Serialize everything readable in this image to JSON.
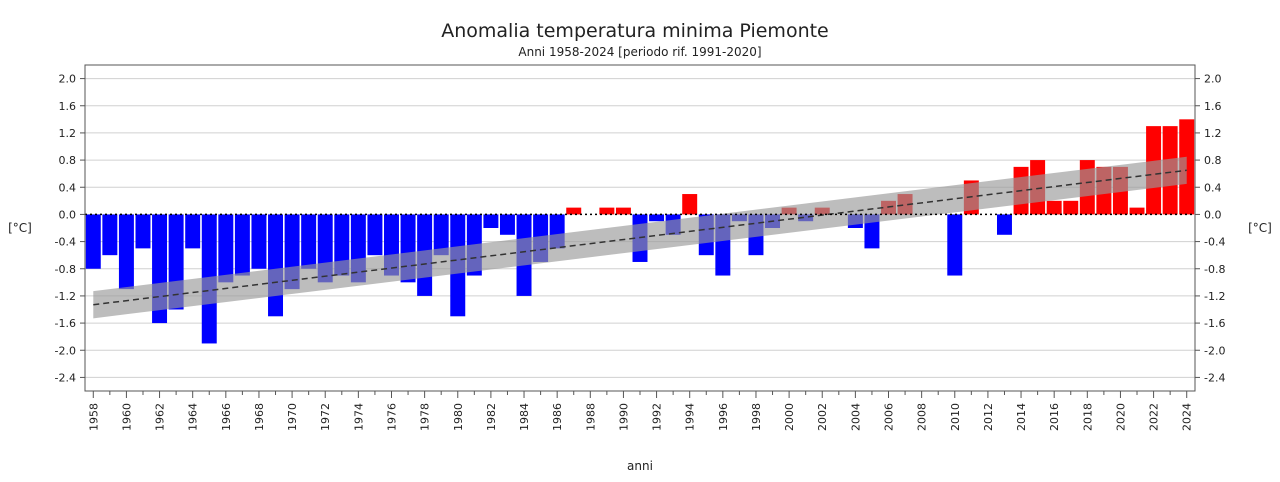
{
  "chart_data": {
    "type": "bar",
    "title": "Anomalia temperatura minima Piemonte",
    "subtitle": "Anni 1958-2024  [periodo rif. 1991-2020]",
    "xlabel": "anni",
    "ylabel_left": "[°C]",
    "ylabel_right": "[°C]",
    "ylim": [
      -2.6,
      2.2
    ],
    "yticks": [
      2.0,
      1.6,
      1.2,
      0.8,
      0.4,
      0.0,
      -0.4,
      -0.8,
      -1.2,
      -1.6,
      -2.0,
      -2.4
    ],
    "ytick_labels": [
      "2.0",
      "1.6",
      "1.2",
      "0.8",
      "0.4",
      "0.0",
      "-0.4",
      "-0.8",
      "-1.2",
      "-1.6",
      "-2.0",
      "-2.4"
    ],
    "xtick_labels": [
      "1958",
      "1960",
      "1962",
      "1964",
      "1966",
      "1968",
      "1970",
      "1972",
      "1974",
      "1976",
      "1978",
      "1980",
      "1982",
      "1984",
      "1986",
      "1988",
      "1990",
      "1992",
      "1994",
      "1996",
      "1998",
      "2000",
      "2002",
      "2004",
      "2006",
      "2008",
      "2010",
      "2012",
      "2014",
      "2016",
      "2018",
      "2020",
      "2022",
      "2024"
    ],
    "grid": true,
    "positive_color": "#ff0000",
    "negative_color": "#0000ff",
    "trend_color": "#333333",
    "band_color": "#999999",
    "trend": {
      "start_year": 1958,
      "start_value": -1.33,
      "end_year": 2024,
      "end_value": 0.65,
      "band_halfwidth": 0.2
    },
    "years": [
      1958,
      1959,
      1960,
      1961,
      1962,
      1963,
      1964,
      1965,
      1966,
      1967,
      1968,
      1969,
      1970,
      1971,
      1972,
      1973,
      1974,
      1975,
      1976,
      1977,
      1978,
      1979,
      1980,
      1981,
      1982,
      1983,
      1984,
      1985,
      1986,
      1987,
      1988,
      1989,
      1990,
      1991,
      1992,
      1993,
      1994,
      1995,
      1996,
      1997,
      1998,
      1999,
      2000,
      2001,
      2002,
      2003,
      2004,
      2005,
      2006,
      2007,
      2008,
      2009,
      2010,
      2011,
      2012,
      2013,
      2014,
      2015,
      2016,
      2017,
      2018,
      2019,
      2020,
      2021,
      2022,
      2023,
      2024
    ],
    "values": [
      -0.8,
      -0.6,
      -1.1,
      -0.5,
      -1.6,
      -1.4,
      -0.5,
      -1.9,
      -1.0,
      -0.9,
      -0.8,
      -1.5,
      -1.1,
      -0.8,
      -1.0,
      -0.9,
      -1.0,
      -0.6,
      -0.9,
      -1.0,
      -1.2,
      -0.6,
      -1.5,
      -0.9,
      -0.2,
      -0.3,
      -1.2,
      -0.7,
      -0.5,
      0.1,
      0.0,
      0.1,
      0.1,
      -0.7,
      -0.1,
      -0.3,
      0.3,
      -0.6,
      -0.9,
      -0.1,
      -0.6,
      -0.2,
      0.1,
      -0.1,
      0.1,
      0.0,
      -0.2,
      -0.5,
      0.2,
      0.3,
      0.0,
      0.0,
      -0.9,
      0.5,
      0.0,
      -0.3,
      0.7,
      0.8,
      0.2,
      0.2,
      0.8,
      0.7,
      0.7,
      0.1,
      1.3,
      1.3,
      1.4
    ]
  }
}
